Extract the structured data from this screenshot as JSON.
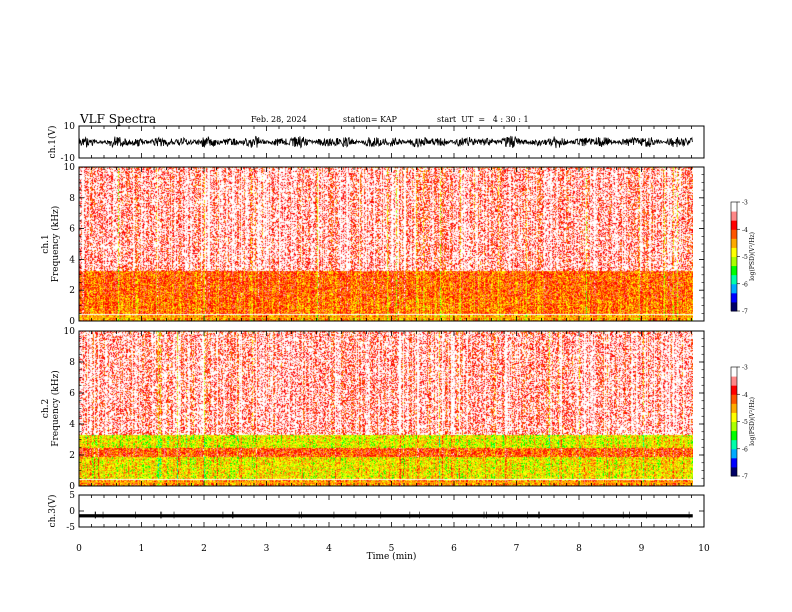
{
  "header": {
    "title": "VLF Spectra",
    "date": "Feb. 28, 2024",
    "station": "station= KAP",
    "start": "start  UT  =   4 : 30 : 1"
  },
  "colors": {
    "colormap": [
      "#000066",
      "#0000ff",
      "#00aaff",
      "#00ffaa",
      "#00ff00",
      "#aaff00",
      "#ffff00",
      "#ffaa00",
      "#ff5500",
      "#ff0000",
      "#ff8888",
      "#ffffff"
    ],
    "trace": "#000000"
  },
  "chart_data": [
    {
      "type": "line",
      "ylabel": "ch.1(V)",
      "ylim": [
        -10,
        10
      ],
      "yticks": [
        "10",
        "-10"
      ],
      "xlim": [
        0,
        10
      ],
      "description_free": true,
      "series": [
        {
          "values_range": [
            -4,
            4
          ]
        }
      ]
    },
    {
      "type": "heatmap",
      "ylabel": "ch.1\nFrequency  (kHz)",
      "ylim": [
        0,
        10
      ],
      "yticks": [
        "0",
        "2",
        "4",
        "6",
        "8",
        "10"
      ],
      "colorbar": {
        "label": "log(PSD)(V²/Hz)",
        "ticks": [
          "-3",
          "-4",
          "-5",
          "-6",
          "-7"
        ],
        "range": [
          -7,
          -3
        ]
      },
      "bands": [
        {
          "freq_khz": [
            0,
            0.5
          ],
          "level": -4.5
        },
        {
          "freq_khz": [
            0.5,
            1.5
          ],
          "level": -4.3
        },
        {
          "freq_khz": [
            1.5,
            3.3
          ],
          "level": -4.2
        },
        {
          "freq_khz": [
            3.3,
            10
          ],
          "level": -3.6
        }
      ]
    },
    {
      "type": "heatmap",
      "ylabel": "ch.2\nFrequency  (kHz)",
      "ylim": [
        0,
        10
      ],
      "yticks": [
        "0",
        "2",
        "4",
        "6",
        "8",
        "10"
      ],
      "colorbar": {
        "label": "log(PSD)(V²/Hz)",
        "ticks": [
          "-3",
          "-4",
          "-5",
          "-6",
          "-7"
        ],
        "range": [
          -7,
          -3
        ]
      },
      "bands": [
        {
          "freq_khz": [
            0,
            0.5
          ],
          "level": -4.4
        },
        {
          "freq_khz": [
            0.5,
            1.9
          ],
          "level": -4.8
        },
        {
          "freq_khz": [
            1.9,
            2.5
          ],
          "level": -4.1
        },
        {
          "freq_khz": [
            2.5,
            3.3
          ],
          "level": -4.9
        },
        {
          "freq_khz": [
            3.3,
            10
          ],
          "level": -3.6
        }
      ]
    },
    {
      "type": "line",
      "ylabel": "ch.3(V)",
      "ylim": [
        -5,
        5
      ],
      "yticks": [
        "5",
        "0",
        "-5"
      ],
      "xlim": [
        0,
        10
      ],
      "series": [
        {
          "level": -1.5,
          "band_halfwidth": 0.5
        }
      ]
    }
  ],
  "xaxis": {
    "label": "Time  (min)",
    "ticks": [
      "0",
      "1",
      "2",
      "3",
      "4",
      "5",
      "6",
      "7",
      "8",
      "9",
      "10"
    ],
    "range": [
      0,
      10
    ],
    "data_end": 9.82
  }
}
